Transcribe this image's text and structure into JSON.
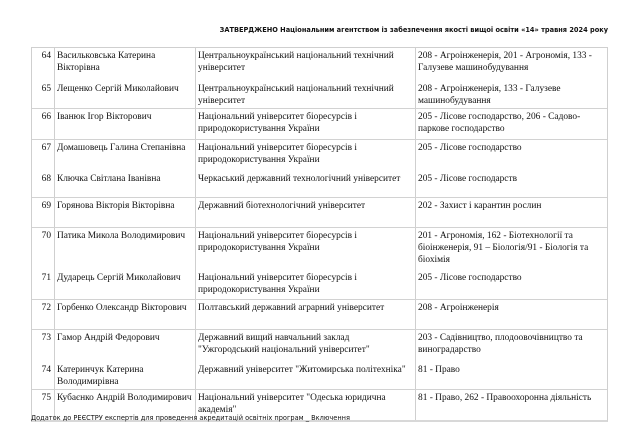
{
  "header": "ЗАТВЕРДЖЕНО Національним агентством із забезпечення якості вищої освіти «14» травня 2024 року",
  "rows": [
    {
      "num": "64",
      "name": "Васильковська Катерина Вікторівна",
      "university": "Центральноукраїнський національний технічний університет",
      "specialty": "208 - Агроінженерія, 201 - Агрономія, 133 - Галузеве машинобудування"
    },
    {
      "num": "65",
      "name": "Лещенко Сергій Миколайович",
      "university": "Центральноукраїнський національний технічний університет",
      "specialty": "208 - Агроінженерія, 133 - Галузеве машинобудування"
    },
    {
      "num": "66",
      "name": "Іванюк Ігор Вікторович",
      "university": "Національний університет біоресурсів і природокористування України",
      "specialty": "205 - Лісове господарство, 206 - Садово-паркове господарство"
    },
    {
      "num": "67",
      "name": "Домашовець Галина Степанівна",
      "university": "Національний університет біоресурсів і природокористування України",
      "specialty": "205 - Лісове господарство"
    },
    {
      "num": "68",
      "name": "Ключка Світлана Іванівна",
      "university": "Черкаський державний технологічний університет",
      "specialty": "205 - Лісове господарств"
    },
    {
      "num": "69",
      "name": "Горянова Вікторія Вікторівна",
      "university": "Державний біотехнологічний університет",
      "specialty": "202 - Захист і карантин рослин"
    },
    {
      "num": "70",
      "name": "Патика Микола Володимирович",
      "university": "Національний університет біоресурсів і природокористування України",
      "specialty": "201 - Агрономія, 162 - Біотехнології та біоінженерія, 91 – Біологія/91 - Біологія та біохімія"
    },
    {
      "num": "71",
      "name": "Дударець Сергій Миколайович",
      "university": "Національний університет біоресурсів і природокористування України",
      "specialty": "205 - Лісове господарство"
    },
    {
      "num": "72",
      "name": "Горбенко Олександр Вікторович",
      "university": "Полтавський державний аграрний університет",
      "specialty": "208 - Агроінженерія"
    },
    {
      "num": "73",
      "name": "Гамор Андрій Федорович",
      "university": "Державний вищий навчальний заклад \"Ужгородський національний університет\"",
      "specialty": "203 - Садівництво, плодоовочівництво та виноградарство"
    },
    {
      "num": "74",
      "name": "Катеринчук Катерина Володимирівна",
      "university": "Державний університет \"Житомирська політехніка\"",
      "specialty": "81 - Право"
    },
    {
      "num": "75",
      "name": "Кубаєнко Андрій Володимирович",
      "university": "Національний університет \"Одеська юридична академія\"",
      "specialty": "81 - Право, 262 - Правоохоронна діяльність"
    }
  ],
  "footer": "Додаток до РЕЄСТРУ експертів для проведення акредитацій освітніх програм _ Включення"
}
